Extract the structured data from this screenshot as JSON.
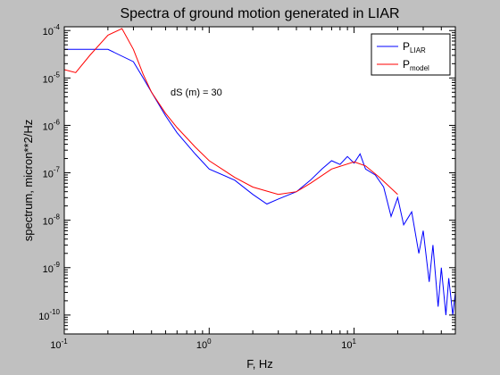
{
  "chart_data": {
    "type": "line",
    "title": "Spectra of ground motion generated in LIAR",
    "xlabel": "F, Hz",
    "ylabel": "spectrum, micron**2/Hz",
    "xscale": "log",
    "yscale": "log",
    "xlim": [
      0.1,
      50
    ],
    "ylim": [
      4e-11,
      0.00012
    ],
    "x_ticks": [
      {
        "base": "10",
        "exp": "-1",
        "value": 0.1
      },
      {
        "base": "10",
        "exp": "0",
        "value": 1
      },
      {
        "base": "10",
        "exp": "1",
        "value": 10
      }
    ],
    "y_ticks": [
      {
        "base": "10",
        "exp": "-10",
        "value": 1e-10
      },
      {
        "base": "10",
        "exp": "-9",
        "value": 1e-09
      },
      {
        "base": "10",
        "exp": "-8",
        "value": 1e-08
      },
      {
        "base": "10",
        "exp": "-7",
        "value": 1e-07
      },
      {
        "base": "10",
        "exp": "-6",
        "value": 1e-06
      },
      {
        "base": "10",
        "exp": "-5",
        "value": 1e-05
      },
      {
        "base": "10",
        "exp": "-4",
        "value": 0.0001
      }
    ],
    "grid": false,
    "legend_position": "top-right",
    "annotation": "dS (m) = 30",
    "series": [
      {
        "name": "P",
        "name_sub": "LIAR",
        "color": "#0000ff",
        "x": [
          0.1,
          0.2,
          0.3,
          0.35,
          0.4,
          0.5,
          0.6,
          0.8,
          1.0,
          1.5,
          2.0,
          2.5,
          3,
          4,
          5,
          6,
          7,
          8,
          9,
          10,
          11,
          12,
          14,
          16,
          18,
          20,
          22,
          25,
          28,
          30,
          33,
          35,
          38,
          40,
          43,
          45,
          48,
          50
        ],
        "y": [
          4e-05,
          4e-05,
          2.2e-05,
          1e-05,
          5e-06,
          1.6e-06,
          7e-07,
          2.5e-07,
          1.2e-07,
          7e-08,
          3.5e-08,
          2.2e-08,
          2.8e-08,
          4e-08,
          7e-08,
          1.2e-07,
          1.8e-07,
          1.5e-07,
          2.2e-07,
          1.6e-07,
          2.5e-07,
          1.2e-07,
          9e-08,
          5e-08,
          1.2e-08,
          3e-08,
          8e-09,
          1.5e-08,
          2e-09,
          6e-09,
          5e-10,
          3e-09,
          1.5e-10,
          1e-09,
          1e-10,
          6e-10,
          1e-10,
          3e-10
        ]
      },
      {
        "name": "P",
        "name_sub": "model",
        "color": "#ff0000",
        "x": [
          0.1,
          0.12,
          0.15,
          0.2,
          0.25,
          0.3,
          0.35,
          0.4,
          0.5,
          0.6,
          0.8,
          1.0,
          1.5,
          2.0,
          3.0,
          4.0,
          5.0,
          7.0,
          10,
          12,
          15,
          20
        ],
        "y": [
          1.5e-05,
          1.3e-05,
          3e-05,
          8e-05,
          0.00011,
          4e-05,
          1.2e-05,
          5e-06,
          1.8e-06,
          9e-07,
          3.5e-07,
          1.8e-07,
          8e-08,
          5e-08,
          3.5e-08,
          4e-08,
          6e-08,
          1.2e-07,
          1.7e-07,
          1.4e-07,
          8e-08,
          3.5e-08
        ]
      }
    ]
  }
}
